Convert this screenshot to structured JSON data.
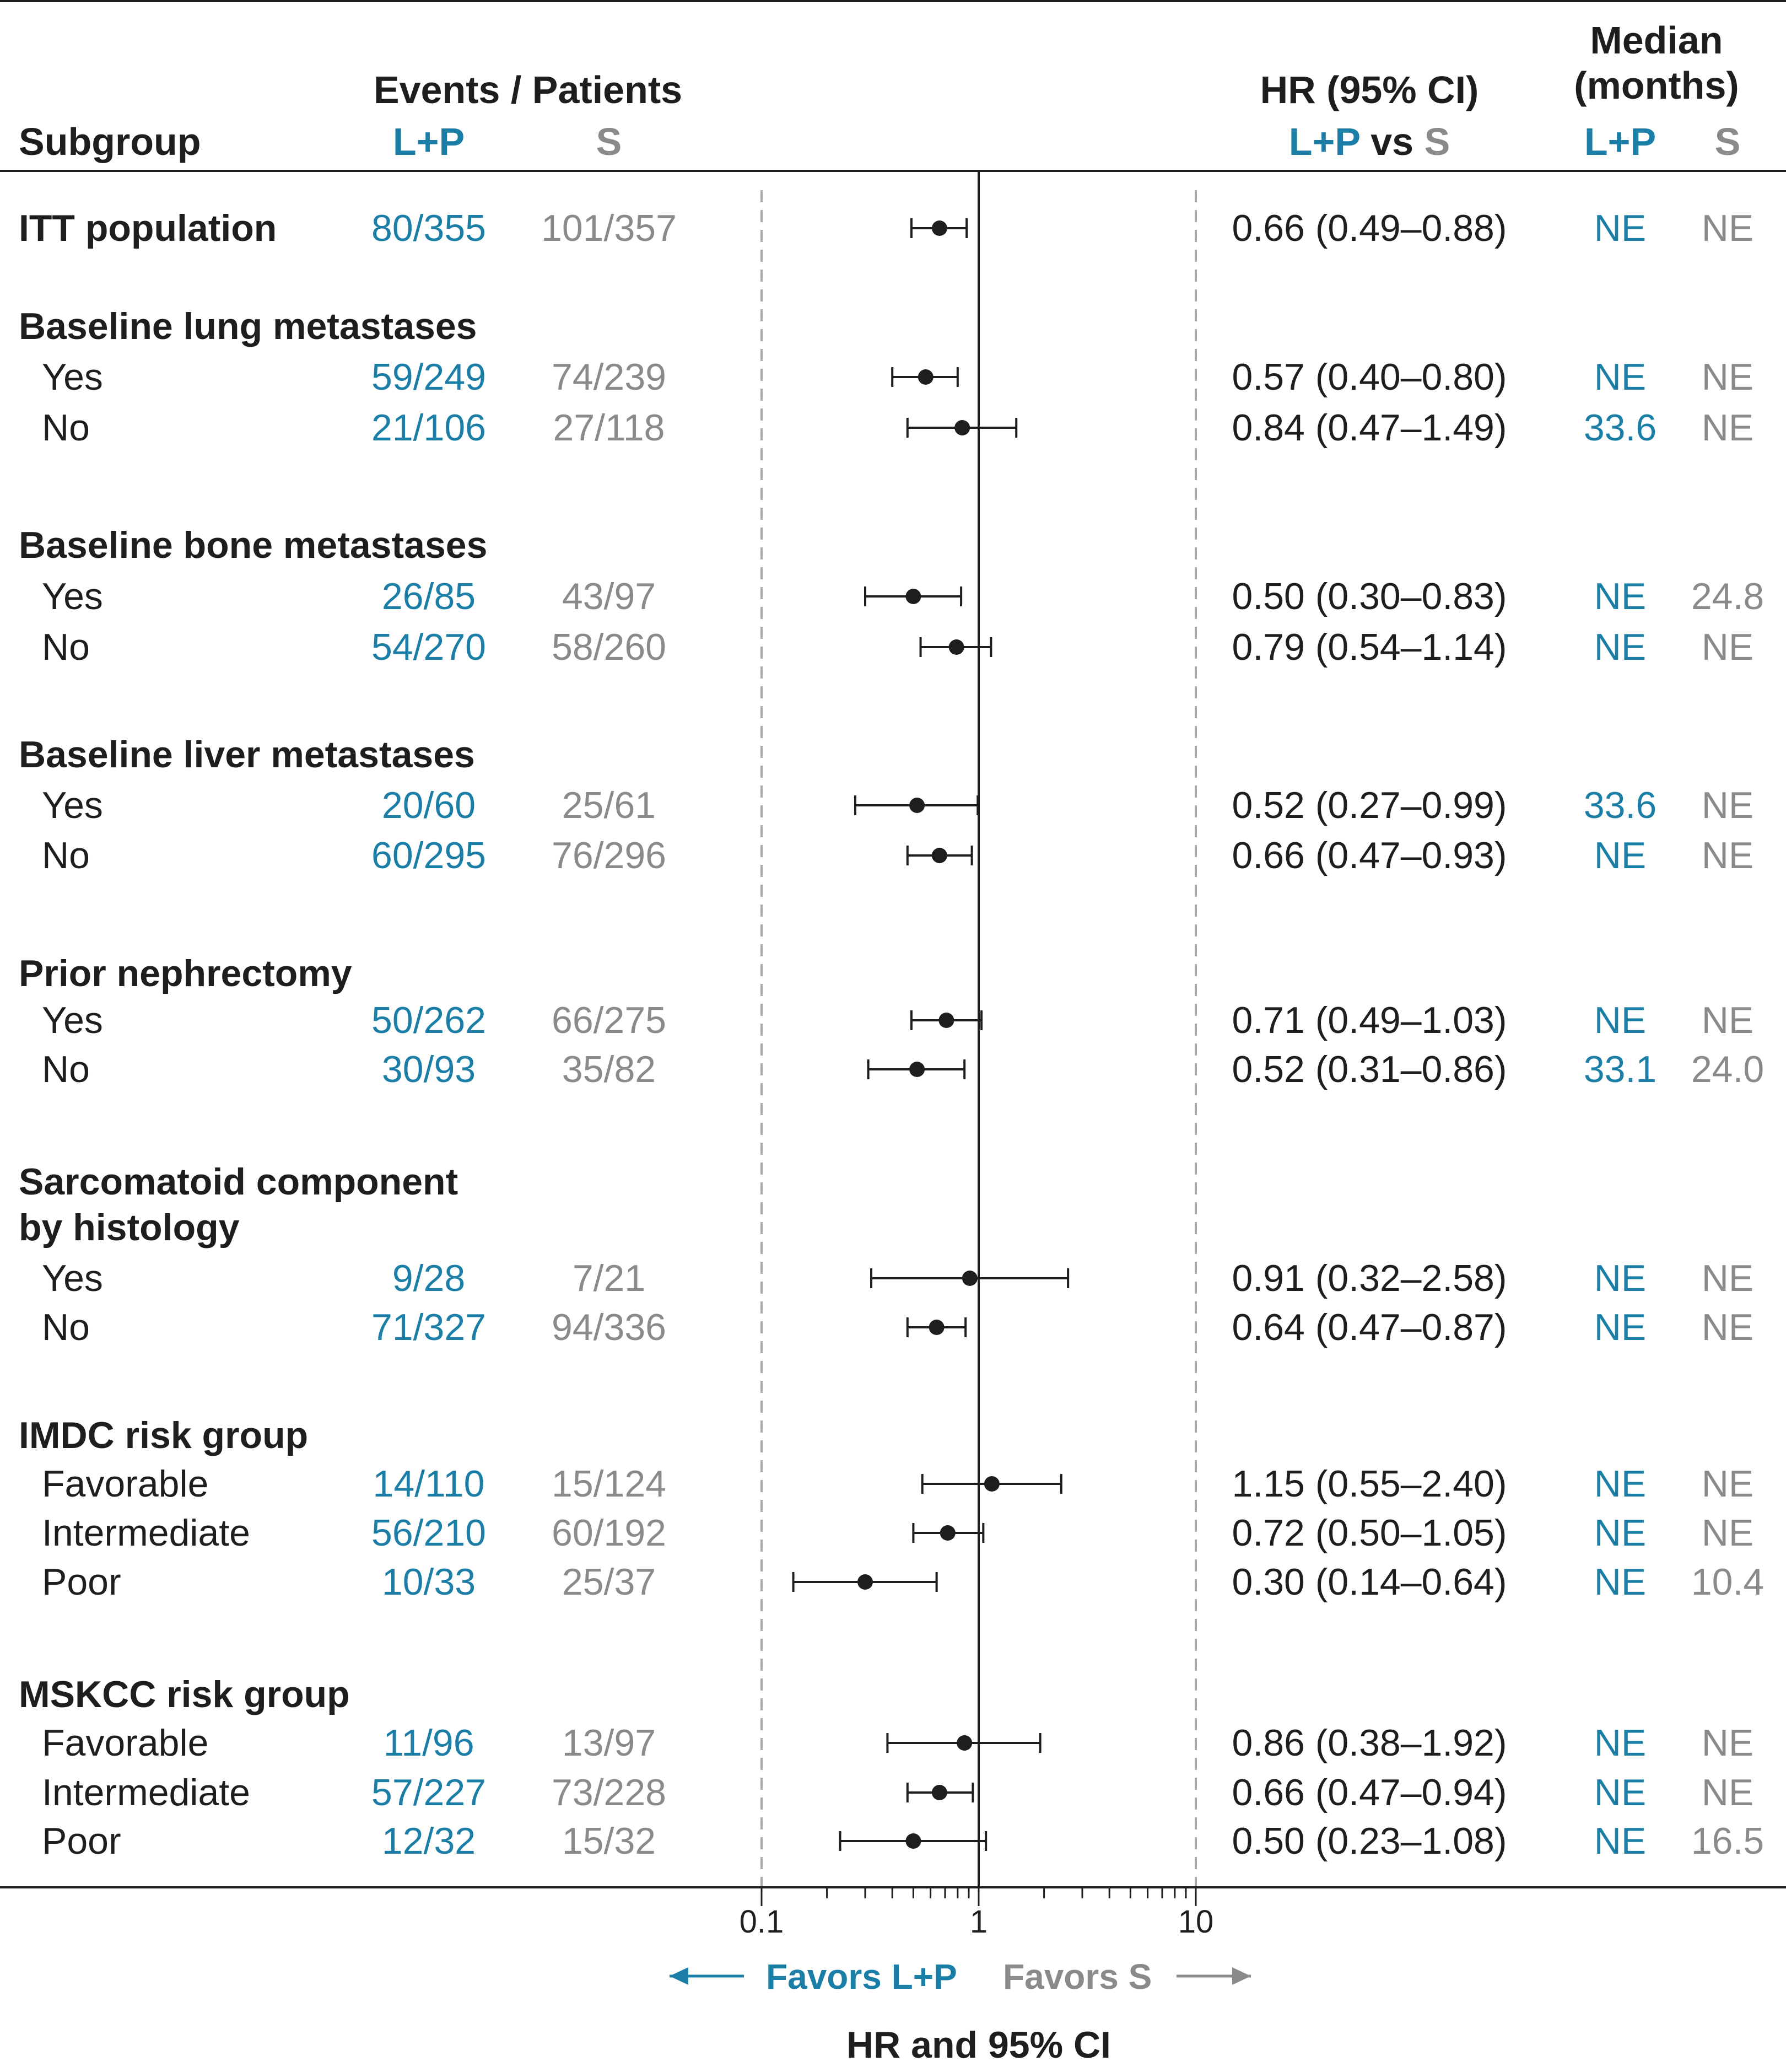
{
  "colors": {
    "lp": "#1a7ea6",
    "s": "#8a8a8a",
    "ink": "#1e1e1e",
    "dash": "#a8a8a8"
  },
  "header": {
    "subgroup": "Subgroup",
    "events": "Events / Patients",
    "arm_lp": "L+P",
    "arm_s": "S",
    "hr_title": "HR (95% CI)",
    "hr_lp": "L+P",
    "hr_vs": "vs",
    "hr_s": "S",
    "median_line1": "Median",
    "median_line2": "(months)",
    "median_lp": "L+P",
    "median_s": "S"
  },
  "chart_data": {
    "type": "forest",
    "x_scale": "log",
    "xlim": [
      0.1,
      10
    ],
    "reference_line": 1,
    "x_ticks": [
      "0.1",
      "1",
      "10"
    ],
    "xlabel": "HR and 95% CI",
    "favors_left": "Favors L+P",
    "favors_right": "Favors S",
    "groups": [
      {
        "title": [
          "ITT population"
        ],
        "bold_row": true,
        "rows": [
          {
            "label": "",
            "lp": "80/355",
            "s": "101/357",
            "hr": 0.66,
            "lo": 0.49,
            "hi": 0.88,
            "hr_text": "0.66 (0.49–0.88)",
            "med_lp": "NE",
            "med_s": "NE"
          }
        ]
      },
      {
        "title": [
          "Baseline lung metastases"
        ],
        "rows": [
          {
            "label": "Yes",
            "lp": "59/249",
            "s": "74/239",
            "hr": 0.57,
            "lo": 0.4,
            "hi": 0.8,
            "hr_text": "0.57 (0.40–0.80)",
            "med_lp": "NE",
            "med_s": "NE"
          },
          {
            "label": "No",
            "lp": "21/106",
            "s": "27/118",
            "hr": 0.84,
            "lo": 0.47,
            "hi": 1.49,
            "hr_text": "0.84 (0.47–1.49)",
            "med_lp": "33.6",
            "med_s": "NE"
          }
        ]
      },
      {
        "title": [
          "Baseline bone metastases"
        ],
        "rows": [
          {
            "label": "Yes",
            "lp": "26/85",
            "s": "43/97",
            "hr": 0.5,
            "lo": 0.3,
            "hi": 0.83,
            "hr_text": "0.50 (0.30–0.83)",
            "med_lp": "NE",
            "med_s": "24.8"
          },
          {
            "label": "No",
            "lp": "54/270",
            "s": "58/260",
            "hr": 0.79,
            "lo": 0.54,
            "hi": 1.14,
            "hr_text": "0.79 (0.54–1.14)",
            "med_lp": "NE",
            "med_s": "NE"
          }
        ]
      },
      {
        "title": [
          "Baseline liver metastases"
        ],
        "rows": [
          {
            "label": "Yes",
            "lp": "20/60",
            "s": "25/61",
            "hr": 0.52,
            "lo": 0.27,
            "hi": 0.99,
            "hr_text": "0.52 (0.27–0.99)",
            "med_lp": "33.6",
            "med_s": "NE"
          },
          {
            "label": "No",
            "lp": "60/295",
            "s": "76/296",
            "hr": 0.66,
            "lo": 0.47,
            "hi": 0.93,
            "hr_text": "0.66 (0.47–0.93)",
            "med_lp": "NE",
            "med_s": "NE"
          }
        ]
      },
      {
        "title": [
          "Prior nephrectomy"
        ],
        "rows": [
          {
            "label": "Yes",
            "lp": "50/262",
            "s": "66/275",
            "hr": 0.71,
            "lo": 0.49,
            "hi": 1.03,
            "hr_text": "0.71 (0.49–1.03)",
            "med_lp": "NE",
            "med_s": "NE"
          },
          {
            "label": "No",
            "lp": "30/93",
            "s": "35/82",
            "hr": 0.52,
            "lo": 0.31,
            "hi": 0.86,
            "hr_text": "0.52 (0.31–0.86)",
            "med_lp": "33.1",
            "med_s": "24.0"
          }
        ]
      },
      {
        "title": [
          "Sarcomatoid component",
          "by histology"
        ],
        "rows": [
          {
            "label": "Yes",
            "lp": "9/28",
            "s": "7/21",
            "hr": 0.91,
            "lo": 0.32,
            "hi": 2.58,
            "hr_text": "0.91 (0.32–2.58)",
            "med_lp": "NE",
            "med_s": "NE"
          },
          {
            "label": "No",
            "lp": "71/327",
            "s": "94/336",
            "hr": 0.64,
            "lo": 0.47,
            "hi": 0.87,
            "hr_text": "0.64 (0.47–0.87)",
            "med_lp": "NE",
            "med_s": "NE"
          }
        ]
      },
      {
        "title": [
          "IMDC risk group"
        ],
        "rows": [
          {
            "label": "Favorable",
            "lp": "14/110",
            "s": "15/124",
            "hr": 1.15,
            "lo": 0.55,
            "hi": 2.4,
            "hr_text": "1.15 (0.55–2.40)",
            "med_lp": "NE",
            "med_s": "NE"
          },
          {
            "label": "Intermediate",
            "lp": "56/210",
            "s": "60/192",
            "hr": 0.72,
            "lo": 0.5,
            "hi": 1.05,
            "hr_text": "0.72 (0.50–1.05)",
            "med_lp": "NE",
            "med_s": "NE"
          },
          {
            "label": "Poor",
            "lp": "10/33",
            "s": "25/37",
            "hr": 0.3,
            "lo": 0.14,
            "hi": 0.64,
            "hr_text": "0.30 (0.14–0.64)",
            "med_lp": "NE",
            "med_s": "10.4"
          }
        ]
      },
      {
        "title": [
          "MSKCC risk group"
        ],
        "rows": [
          {
            "label": "Favorable",
            "lp": "11/96",
            "s": "13/97",
            "hr": 0.86,
            "lo": 0.38,
            "hi": 1.92,
            "hr_text": "0.86 (0.38–1.92)",
            "med_lp": "NE",
            "med_s": "NE"
          },
          {
            "label": "Intermediate",
            "lp": "57/227",
            "s": "73/228",
            "hr": 0.66,
            "lo": 0.47,
            "hi": 0.94,
            "hr_text": "0.66 (0.47–0.94)",
            "med_lp": "NE",
            "med_s": "NE"
          },
          {
            "label": "Poor",
            "lp": "12/32",
            "s": "15/32",
            "hr": 0.5,
            "lo": 0.23,
            "hi": 1.08,
            "hr_text": "0.50 (0.23–1.08)",
            "med_lp": "NE",
            "med_s": "16.5"
          }
        ]
      }
    ]
  }
}
